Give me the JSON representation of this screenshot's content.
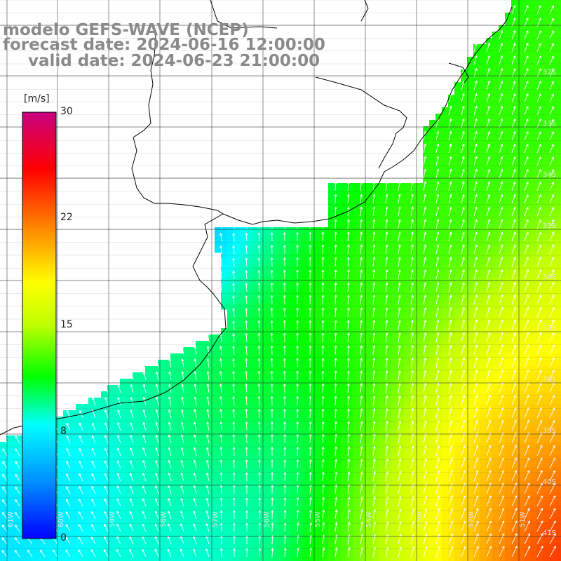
{
  "title": {
    "line1": "modelo GEFS-WAVE (NCEP)",
    "line2": "forecast date: 2024-06-16 12:00:00",
    "line3": "valid date: 2024-06-23 21:00:00"
  },
  "colorbar": {
    "unit": "[m/s]",
    "ticks": [
      "30",
      "22",
      "15",
      "8",
      "0"
    ],
    "tick_values": [
      30,
      22,
      15,
      8,
      0
    ],
    "colors": [
      "#0000ff",
      "#00ffff",
      "#00ff00",
      "#ffff00",
      "#ff8000",
      "#ff0000",
      "#c00080"
    ]
  },
  "map": {
    "lon_labels": [
      "61W",
      "60W",
      "59W",
      "58W",
      "57W",
      "56W",
      "55W",
      "54W",
      "53W",
      "52W",
      "51W"
    ],
    "lat_labels": [
      "32S",
      "33S",
      "34S",
      "35S",
      "36S",
      "37S",
      "38S",
      "39S",
      "40S",
      "41S"
    ],
    "grid": true,
    "land_color": "#ffffff",
    "coast_color": "#000000"
  }
}
